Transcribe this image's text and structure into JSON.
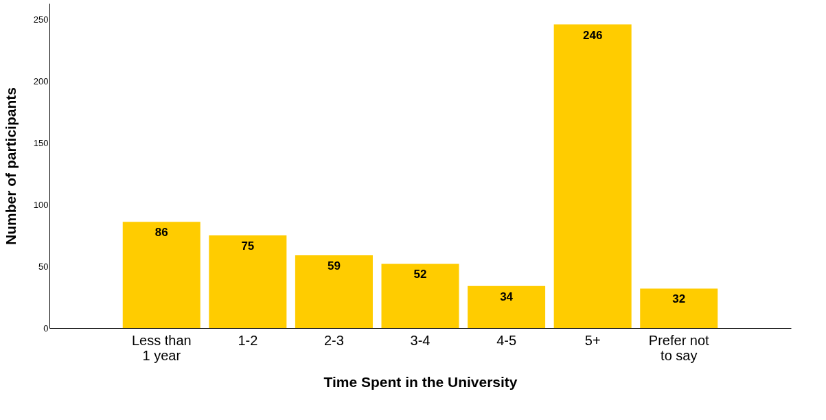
{
  "chart_data": {
    "type": "bar",
    "xlabel": "Time Spent in the University",
    "ylabel": "Number of participants",
    "categories": [
      "Less than 1 year",
      "1-2",
      "2-3",
      "3-4",
      "4-5",
      "5+",
      "Prefer not to say"
    ],
    "values": [
      86,
      75,
      59,
      52,
      34,
      246,
      32
    ],
    "color": "#ffcc00",
    "ylim": [
      0,
      263
    ],
    "yticks": [
      0,
      50,
      100,
      150,
      200,
      250
    ],
    "grid": false,
    "data_labels": true
  }
}
